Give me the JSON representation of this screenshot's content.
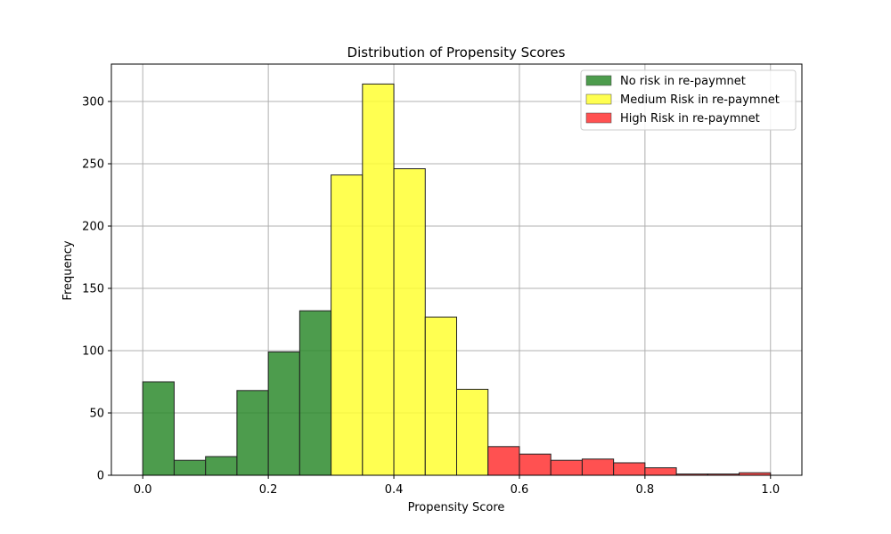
{
  "chart_data": {
    "type": "bar",
    "title": "Distribution of Propensity Scores",
    "xlabel": "Propensity Score",
    "ylabel": "Frequency",
    "xlim": [
      -0.05,
      1.05
    ],
    "ylim": [
      0,
      330
    ],
    "x_ticks": [
      0.0,
      0.2,
      0.4,
      0.6,
      0.8,
      1.0
    ],
    "x_tick_labels": [
      "0.0",
      "0.2",
      "0.4",
      "0.6",
      "0.8",
      "1.0"
    ],
    "y_ticks": [
      0,
      50,
      100,
      150,
      200,
      250,
      300
    ],
    "y_tick_labels": [
      "0",
      "50",
      "100",
      "150",
      "200",
      "250",
      "300"
    ],
    "grid": true,
    "legend_position": "top-right",
    "bin_width": 0.05,
    "series": [
      {
        "name": "No risk in re-paymnet",
        "color": "#2e8b2e",
        "bins": [
          {
            "x": 0.0,
            "value": 75
          },
          {
            "x": 0.05,
            "value": 12
          },
          {
            "x": 0.1,
            "value": 15
          },
          {
            "x": 0.15,
            "value": 68
          },
          {
            "x": 0.2,
            "value": 99
          },
          {
            "x": 0.25,
            "value": 132
          }
        ]
      },
      {
        "name": "Medium Risk in re-paymnet",
        "color": "#ffff33",
        "bins": [
          {
            "x": 0.3,
            "value": 241
          },
          {
            "x": 0.35,
            "value": 314
          },
          {
            "x": 0.4,
            "value": 246
          },
          {
            "x": 0.45,
            "value": 127
          },
          {
            "x": 0.5,
            "value": 69
          }
        ]
      },
      {
        "name": "High Risk in re-paymnet",
        "color": "#ff3333",
        "bins": [
          {
            "x": 0.55,
            "value": 23
          },
          {
            "x": 0.6,
            "value": 17
          },
          {
            "x": 0.65,
            "value": 12
          },
          {
            "x": 0.7,
            "value": 13
          },
          {
            "x": 0.75,
            "value": 10
          },
          {
            "x": 0.8,
            "value": 6
          },
          {
            "x": 0.85,
            "value": 1
          },
          {
            "x": 0.9,
            "value": 1
          },
          {
            "x": 0.95,
            "value": 2
          }
        ]
      }
    ]
  }
}
